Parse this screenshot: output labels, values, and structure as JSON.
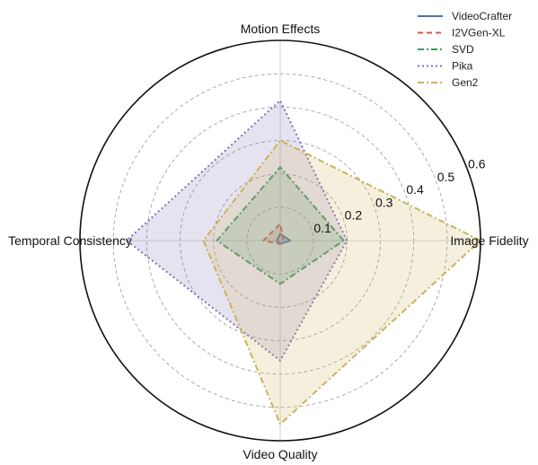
{
  "chart_data": {
    "type": "radar",
    "axes": [
      "Image Fidelity",
      "Motion Effects",
      "Temporal Consistency",
      "Video Quality"
    ],
    "rmax": 0.6,
    "radial_ticks": [
      0.1,
      0.2,
      0.3,
      0.4,
      0.5,
      0.6
    ],
    "radial_tick_labels": [
      "0.1",
      "0.2",
      "0.3",
      "0.4",
      "0.5",
      "0.6"
    ],
    "grid": true,
    "legend_position": "top-right",
    "series": [
      {
        "name": "VideoCrafter",
        "values": [
          0.03,
          0.02,
          0.01,
          0.01
        ],
        "color": "#4c72b0",
        "dash": "solid"
      },
      {
        "name": "I2VGen-XL",
        "values": [
          0.01,
          0.05,
          0.05,
          0.01
        ],
        "color": "#dd5555",
        "dash": "dashed"
      },
      {
        "name": "SVD",
        "values": [
          0.19,
          0.22,
          0.19,
          0.13
        ],
        "color": "#3a9e5c",
        "dash": "dashdot"
      },
      {
        "name": "Pika",
        "values": [
          0.2,
          0.42,
          0.46,
          0.36
        ],
        "color": "#8172b3",
        "dash": "dotted"
      },
      {
        "name": "Gen2",
        "values": [
          0.6,
          0.3,
          0.23,
          0.55
        ],
        "color": "#ccb25a",
        "dash": "dashdot"
      }
    ]
  }
}
